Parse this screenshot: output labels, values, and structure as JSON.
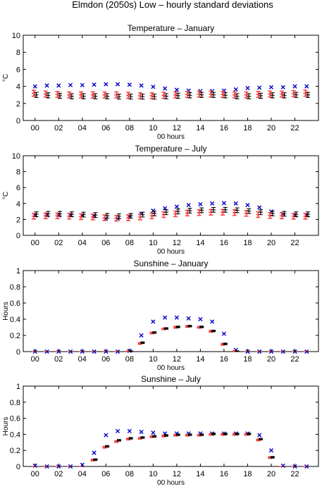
{
  "figure": {
    "title": "Elmdon (2050s) Low – hourly standard deviations",
    "colors": {
      "obs_marker": "#0000cc",
      "model_bar": "#000000",
      "model_fill": "#ff4444"
    }
  },
  "chart_data": [
    {
      "type": "scatter",
      "title": "Temperature – January",
      "xlabel": "00 hours",
      "ylabel": "°C",
      "ylim": [
        0,
        10
      ],
      "yticks": [
        "0",
        "2",
        "4",
        "6",
        "8",
        "10"
      ],
      "xlim": [
        -1,
        24
      ],
      "xticks": [
        "00",
        "02",
        "04",
        "06",
        "08",
        "10",
        "12",
        "14",
        "16",
        "18",
        "20",
        "22"
      ],
      "x": [
        0,
        1,
        2,
        3,
        4,
        5,
        6,
        7,
        8,
        9,
        10,
        11,
        12,
        13,
        14,
        15,
        16,
        17,
        18,
        19,
        20,
        21,
        22,
        23
      ],
      "series": [
        {
          "marker": "x",
          "values": [
            4.0,
            4.1,
            4.1,
            4.15,
            4.15,
            4.2,
            4.25,
            4.25,
            4.2,
            4.1,
            3.95,
            3.75,
            3.6,
            3.5,
            3.45,
            3.45,
            3.5,
            3.65,
            3.8,
            3.85,
            3.9,
            3.9,
            4.0,
            4.0
          ]
        },
        {
          "marker": "errorbar-red",
          "values": [
            3.2,
            3.1,
            3.05,
            3.0,
            3.0,
            3.0,
            3.0,
            3.0,
            2.95,
            2.9,
            2.9,
            2.95,
            3.0,
            3.05,
            3.1,
            3.1,
            3.05,
            3.0,
            3.0,
            3.05,
            3.1,
            3.1,
            3.15,
            3.2
          ],
          "err": [
            0.35,
            0.35,
            0.35,
            0.35,
            0.35,
            0.35,
            0.35,
            0.35,
            0.35,
            0.35,
            0.35,
            0.35,
            0.35,
            0.35,
            0.35,
            0.35,
            0.35,
            0.35,
            0.35,
            0.35,
            0.35,
            0.35,
            0.35,
            0.35
          ]
        },
        {
          "marker": "errorbar-black",
          "values": [
            3.0,
            2.95,
            2.9,
            2.85,
            2.85,
            2.85,
            2.85,
            2.8,
            2.8,
            2.8,
            2.8,
            2.85,
            2.9,
            2.95,
            3.0,
            3.0,
            2.95,
            2.85,
            2.85,
            2.9,
            2.95,
            2.95,
            3.0,
            3.0
          ],
          "err": [
            0.3,
            0.3,
            0.3,
            0.3,
            0.3,
            0.3,
            0.3,
            0.3,
            0.3,
            0.3,
            0.3,
            0.3,
            0.3,
            0.3,
            0.3,
            0.3,
            0.3,
            0.3,
            0.3,
            0.3,
            0.3,
            0.3,
            0.3,
            0.3
          ]
        }
      ]
    },
    {
      "type": "scatter",
      "title": "Temperature – July",
      "xlabel": "00 hours",
      "ylabel": "°C",
      "ylim": [
        0,
        10
      ],
      "yticks": [
        "0",
        "2",
        "4",
        "6",
        "8",
        "10"
      ],
      "xlim": [
        -1,
        24
      ],
      "xticks": [
        "00",
        "02",
        "04",
        "06",
        "08",
        "10",
        "12",
        "14",
        "16",
        "18",
        "20",
        "22"
      ],
      "x": [
        0,
        1,
        2,
        3,
        4,
        5,
        6,
        7,
        8,
        9,
        10,
        11,
        12,
        13,
        14,
        15,
        16,
        17,
        18,
        19,
        20,
        21,
        22,
        23
      ],
      "series": [
        {
          "marker": "x",
          "values": [
            2.5,
            2.5,
            2.5,
            2.5,
            2.5,
            2.4,
            2.1,
            2.1,
            2.4,
            2.7,
            3.1,
            3.4,
            3.6,
            3.8,
            3.9,
            4.0,
            4.05,
            4.0,
            3.8,
            3.5,
            3.0,
            2.7,
            2.5,
            2.5
          ]
        },
        {
          "marker": "errorbar-red",
          "values": [
            2.4,
            2.45,
            2.45,
            2.4,
            2.35,
            2.3,
            2.2,
            2.15,
            2.2,
            2.3,
            2.45,
            2.6,
            2.7,
            2.8,
            2.85,
            2.9,
            2.9,
            2.85,
            2.75,
            2.6,
            2.5,
            2.45,
            2.4,
            2.4
          ],
          "err": [
            0.35,
            0.35,
            0.35,
            0.35,
            0.35,
            0.35,
            0.35,
            0.35,
            0.35,
            0.35,
            0.35,
            0.35,
            0.35,
            0.35,
            0.35,
            0.35,
            0.35,
            0.35,
            0.35,
            0.35,
            0.35,
            0.35,
            0.35,
            0.35
          ]
        },
        {
          "marker": "errorbar-black",
          "values": [
            2.65,
            2.7,
            2.7,
            2.65,
            2.6,
            2.55,
            2.45,
            2.4,
            2.45,
            2.6,
            2.75,
            2.9,
            3.0,
            3.1,
            3.15,
            3.2,
            3.2,
            3.15,
            3.05,
            2.9,
            2.75,
            2.7,
            2.65,
            2.65
          ],
          "err": [
            0.3,
            0.3,
            0.3,
            0.3,
            0.3,
            0.3,
            0.3,
            0.3,
            0.3,
            0.3,
            0.3,
            0.3,
            0.3,
            0.3,
            0.3,
            0.3,
            0.3,
            0.3,
            0.3,
            0.3,
            0.3,
            0.3,
            0.3,
            0.3
          ]
        }
      ]
    },
    {
      "type": "scatter",
      "title": "Sunshine – January",
      "xlabel": "00 hours",
      "ylabel": "Hours",
      "ylim": [
        0,
        1
      ],
      "yticks": [
        "0",
        "0.2",
        "0.4",
        "0.6",
        "0.8",
        "1"
      ],
      "xlim": [
        -1,
        24
      ],
      "xticks": [
        "00",
        "02",
        "04",
        "06",
        "08",
        "10",
        "12",
        "14",
        "16",
        "18",
        "20",
        "22"
      ],
      "x": [
        0,
        1,
        2,
        3,
        4,
        5,
        6,
        7,
        8,
        9,
        10,
        11,
        12,
        13,
        14,
        15,
        16,
        17,
        18,
        19,
        20,
        21,
        22,
        23
      ],
      "series": [
        {
          "marker": "x",
          "values": [
            0,
            0,
            0,
            0,
            0,
            0,
            0,
            0,
            0.01,
            0.2,
            0.37,
            0.42,
            0.42,
            0.41,
            0.4,
            0.37,
            0.22,
            0.02,
            0,
            0,
            0,
            0,
            0,
            0
          ]
        },
        {
          "marker": "errorbar-red",
          "values": [
            0,
            0,
            0,
            0,
            0,
            0,
            0,
            0,
            0.005,
            0.1,
            0.23,
            0.28,
            0.3,
            0.31,
            0.3,
            0.25,
            0.09,
            0.005,
            0,
            0,
            0,
            0,
            0,
            0
          ],
          "err": [
            0,
            0,
            0,
            0,
            0,
            0,
            0,
            0,
            0.005,
            0.01,
            0.01,
            0.01,
            0.01,
            0.01,
            0.01,
            0.01,
            0.01,
            0.005,
            0,
            0,
            0,
            0,
            0,
            0
          ]
        },
        {
          "marker": "errorbar-black",
          "values": [
            0,
            0,
            0,
            0,
            0,
            0,
            0,
            0,
            0.005,
            0.11,
            0.235,
            0.285,
            0.305,
            0.315,
            0.305,
            0.255,
            0.095,
            0.005,
            0,
            0,
            0,
            0,
            0,
            0
          ],
          "err": [
            0,
            0,
            0,
            0,
            0,
            0,
            0,
            0,
            0.005,
            0.01,
            0.01,
            0.01,
            0.01,
            0.01,
            0.01,
            0.01,
            0.01,
            0.005,
            0,
            0,
            0,
            0,
            0,
            0
          ]
        }
      ]
    },
    {
      "type": "scatter",
      "title": "Sunshine – July",
      "xlabel": "00 hours",
      "ylabel": "Hours",
      "ylim": [
        0,
        1
      ],
      "yticks": [
        "0",
        "0.2",
        "0.4",
        "0.6",
        "0.8",
        "1"
      ],
      "xlim": [
        -1,
        24
      ],
      "xticks": [
        "00",
        "02",
        "04",
        "06",
        "08",
        "10",
        "12",
        "14",
        "16",
        "18",
        "20",
        "22"
      ],
      "x": [
        0,
        1,
        2,
        3,
        4,
        5,
        6,
        7,
        8,
        9,
        10,
        11,
        12,
        13,
        14,
        15,
        16,
        17,
        18,
        19,
        20,
        21,
        22,
        23
      ],
      "series": [
        {
          "marker": "x",
          "values": [
            0.01,
            0,
            0,
            0,
            0.02,
            0.17,
            0.39,
            0.44,
            0.44,
            0.43,
            0.42,
            0.41,
            0.41,
            0.41,
            0.41,
            0.41,
            0.41,
            0.41,
            0.41,
            0.39,
            0.2,
            0.01,
            0,
            0
          ]
        },
        {
          "marker": "errorbar-red",
          "values": [
            0,
            0,
            0,
            0,
            0,
            0.08,
            0.24,
            0.31,
            0.34,
            0.35,
            0.37,
            0.38,
            0.39,
            0.39,
            0.39,
            0.4,
            0.4,
            0.4,
            0.4,
            0.33,
            0.11,
            0,
            0,
            0
          ],
          "err": [
            0,
            0,
            0,
            0,
            0,
            0.01,
            0.01,
            0.01,
            0.01,
            0.01,
            0.01,
            0.01,
            0.01,
            0.01,
            0.01,
            0.01,
            0.01,
            0.01,
            0.01,
            0.01,
            0.01,
            0,
            0,
            0
          ]
        },
        {
          "marker": "errorbar-black",
          "values": [
            0,
            0,
            0,
            0,
            0,
            0.085,
            0.25,
            0.325,
            0.35,
            0.36,
            0.375,
            0.385,
            0.395,
            0.395,
            0.395,
            0.405,
            0.405,
            0.405,
            0.405,
            0.34,
            0.115,
            0,
            0,
            0
          ],
          "err": [
            0,
            0,
            0,
            0,
            0,
            0.01,
            0.01,
            0.01,
            0.01,
            0.01,
            0.01,
            0.01,
            0.01,
            0.01,
            0.01,
            0.01,
            0.01,
            0.01,
            0.01,
            0.01,
            0.01,
            0,
            0,
            0
          ]
        }
      ]
    }
  ]
}
